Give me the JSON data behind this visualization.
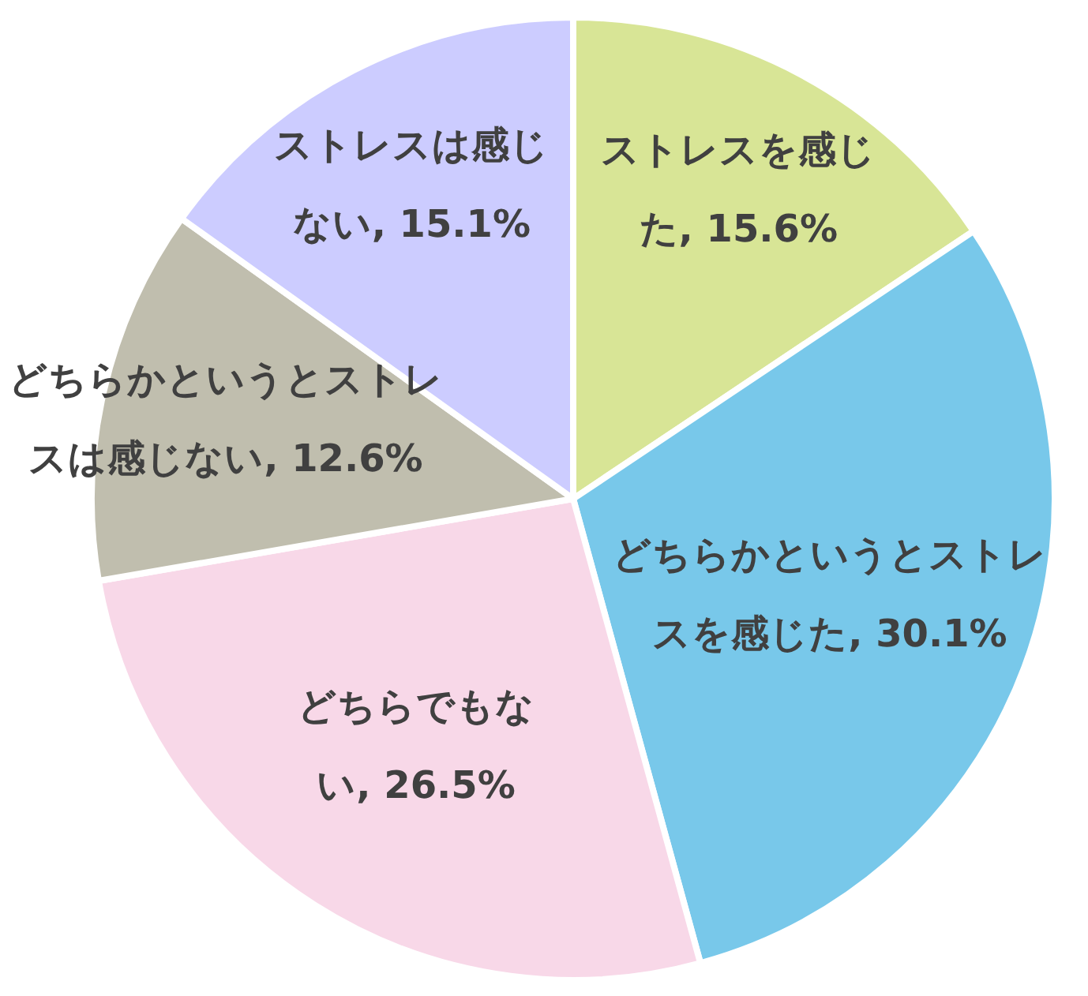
{
  "chart_data": {
    "type": "pie",
    "categories": [
      "ストレスを感じた",
      "どちらかというとストレスを感じた",
      "どちらでもない",
      "どちらかというとストレスは感じない",
      "ストレスは感じない"
    ],
    "values": [
      15.6,
      30.1,
      26.5,
      12.6,
      15.1
    ],
    "colors": [
      "#d8e596",
      "#78c8ea",
      "#f8d8e8",
      "#c0beae",
      "#ccccff"
    ],
    "value_labels": [
      "15.6%",
      "30.1%",
      "26.5%",
      "12.6%",
      "15.1%"
    ]
  }
}
